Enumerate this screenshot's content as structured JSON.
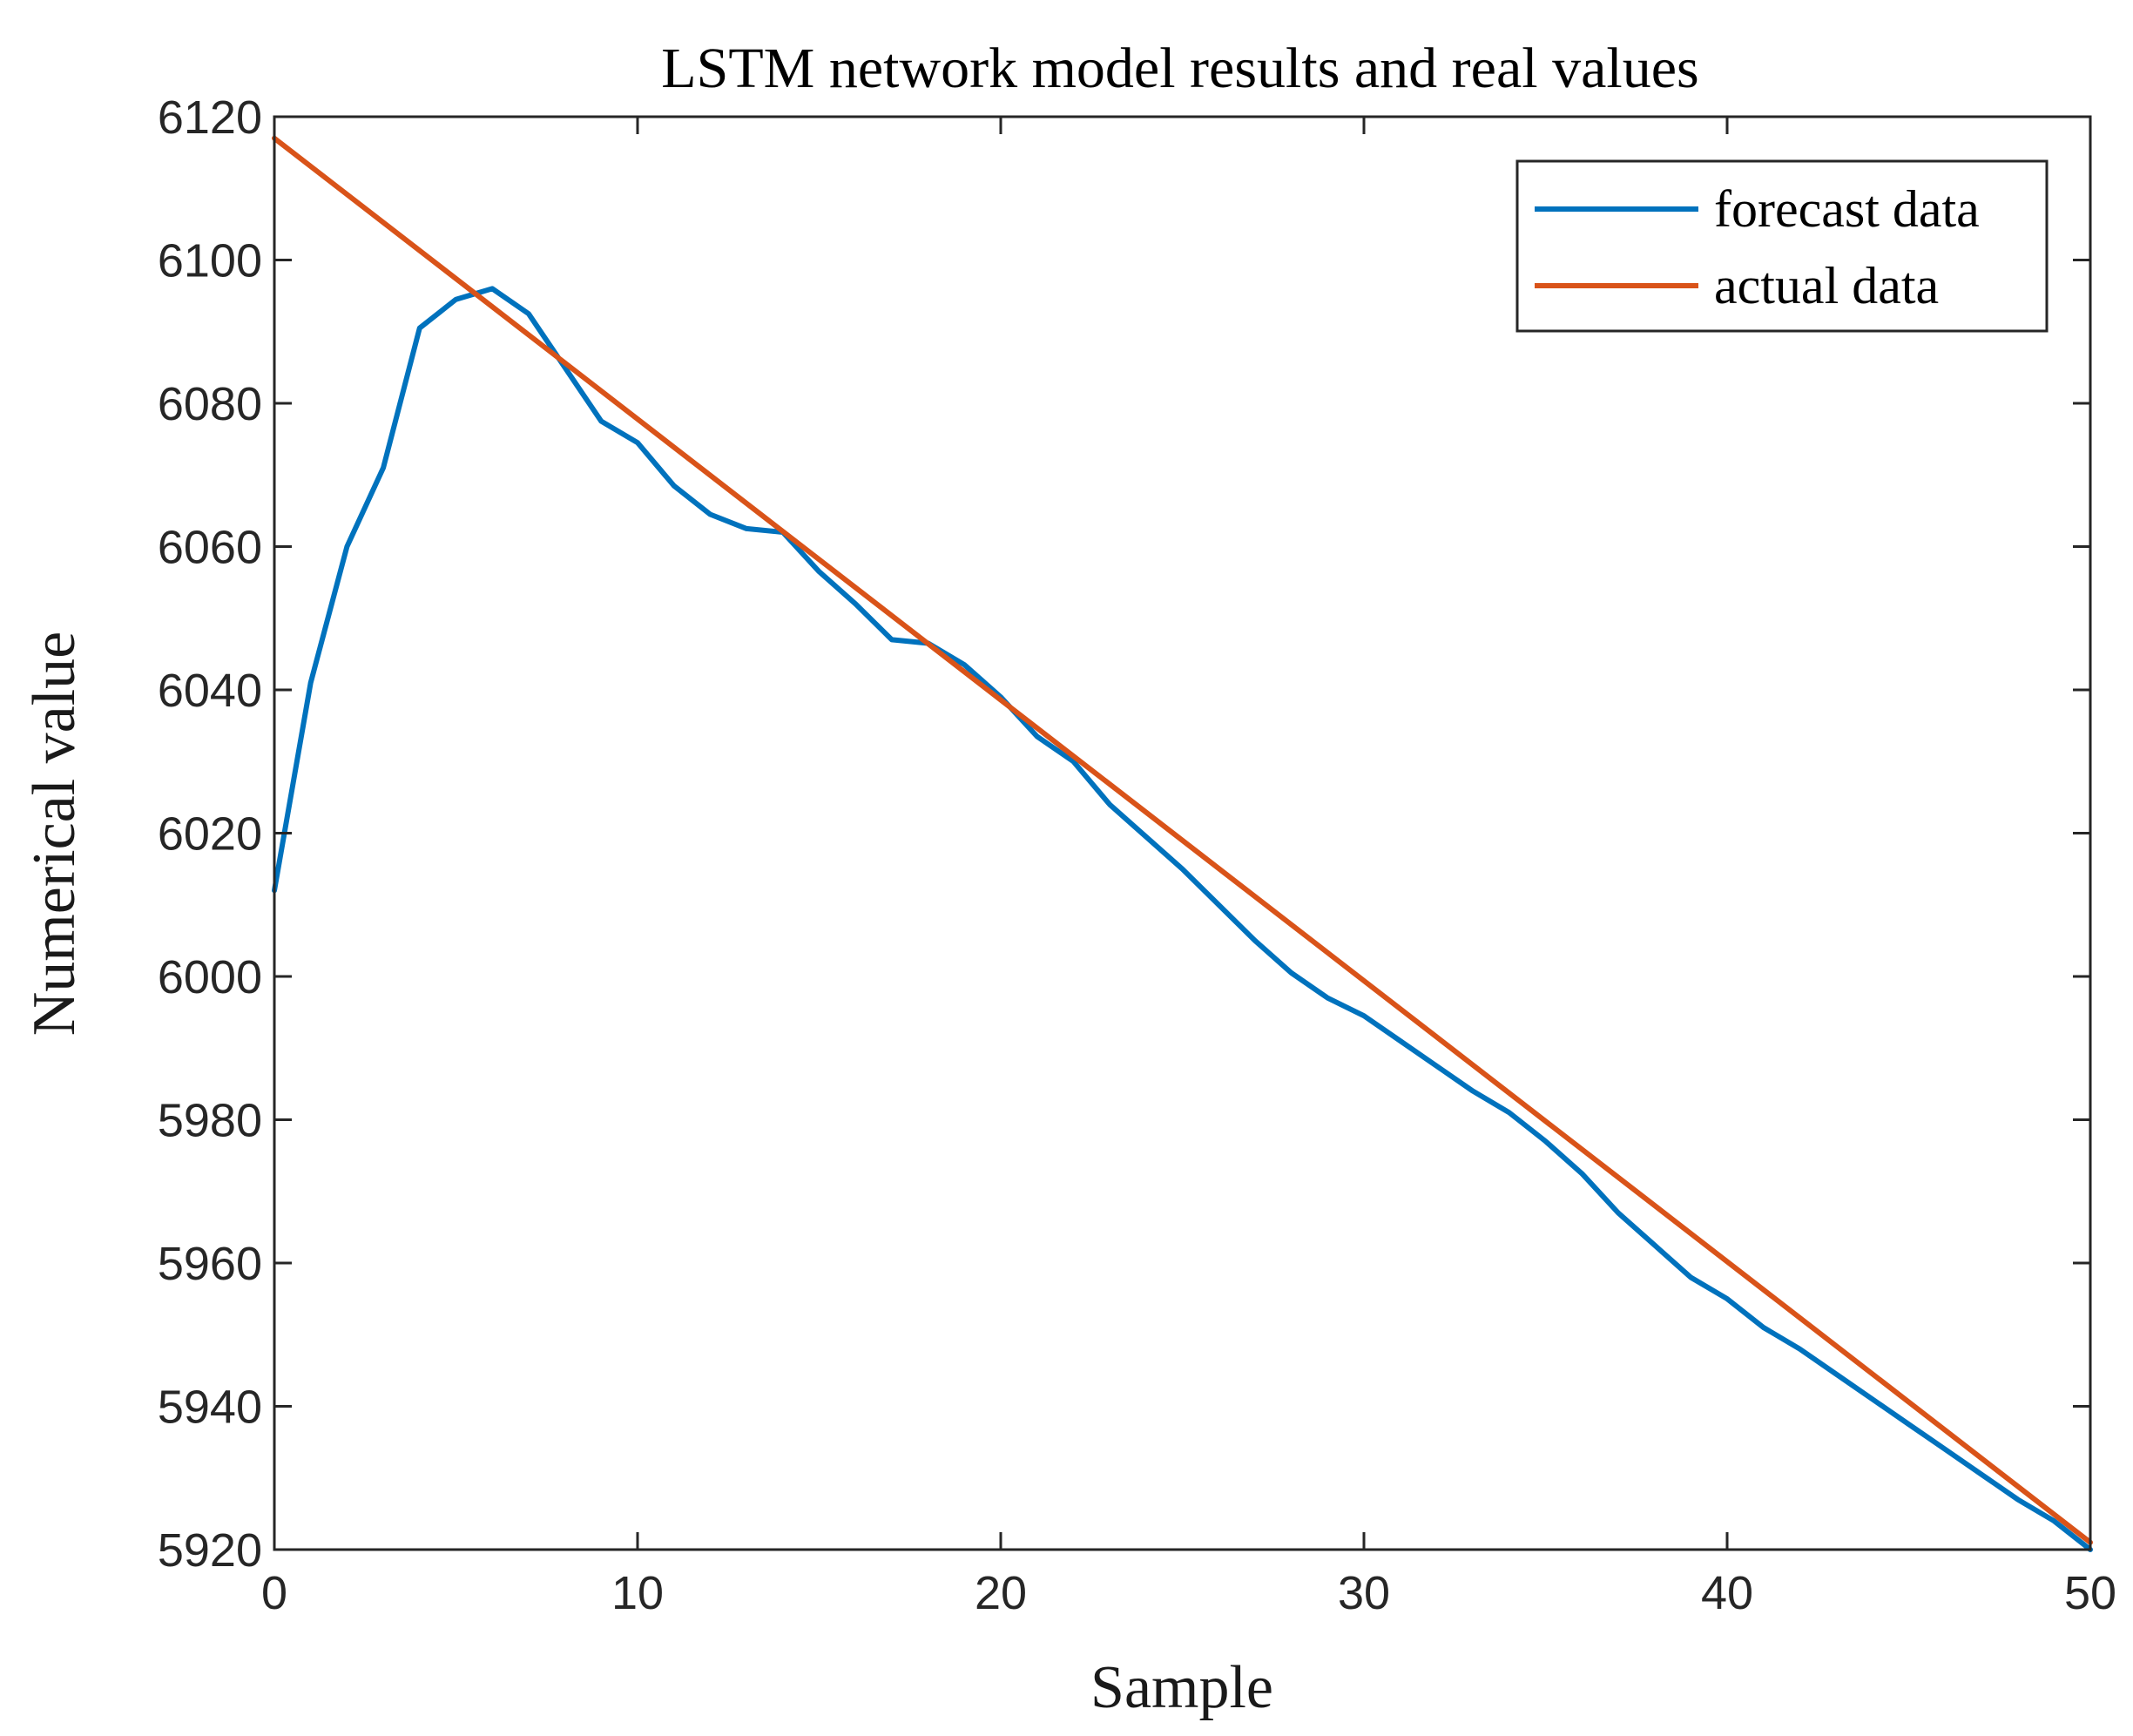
{
  "chart_data": {
    "type": "line",
    "title": "LSTM network model results and real values",
    "xlabel": "Sample",
    "ylabel": "Numerical value",
    "xlim": [
      0,
      50
    ],
    "ylim": [
      5920,
      6120
    ],
    "xticks": [
      0,
      10,
      20,
      30,
      40,
      50
    ],
    "yticks": [
      5920,
      5940,
      5960,
      5980,
      6000,
      6020,
      6040,
      6060,
      6080,
      6100,
      6120
    ],
    "grid": false,
    "legend_position": "top-right",
    "series": [
      {
        "name": "forecast data",
        "color": "#0072BD",
        "x": [
          0,
          1,
          2,
          3,
          4,
          5,
          6,
          7,
          8,
          9,
          10,
          11,
          12,
          13,
          14,
          15,
          16,
          17,
          18,
          19,
          20,
          21,
          22,
          23,
          24,
          25,
          26,
          27,
          28,
          29,
          30,
          31,
          32,
          33,
          34,
          35,
          36,
          37,
          38,
          39,
          40,
          41,
          42,
          43,
          44,
          45,
          46,
          47,
          48,
          49,
          50
        ],
        "values": [
          6012,
          6041,
          6060,
          6071,
          6090.5,
          6094.5,
          6096,
          6092.5,
          6085,
          6077.5,
          6074.5,
          6068.5,
          6064.5,
          6062.5,
          6062,
          6056.5,
          6052,
          6047,
          6046.5,
          6043.5,
          6039,
          6033.5,
          6030,
          6024,
          6019.5,
          6015,
          6010,
          6005,
          6000.5,
          5997,
          5994.5,
          5991,
          5987.5,
          5984,
          5981,
          5977,
          5972.5,
          5967,
          5962.5,
          5958,
          5955,
          5951,
          5948,
          5944.5,
          5941,
          5937.5,
          5934,
          5930.5,
          5927,
          5924,
          5920
        ]
      },
      {
        "name": "actual data",
        "color": "#D95319",
        "x": [
          0,
          50
        ],
        "values": [
          6117,
          5921
        ]
      }
    ]
  }
}
